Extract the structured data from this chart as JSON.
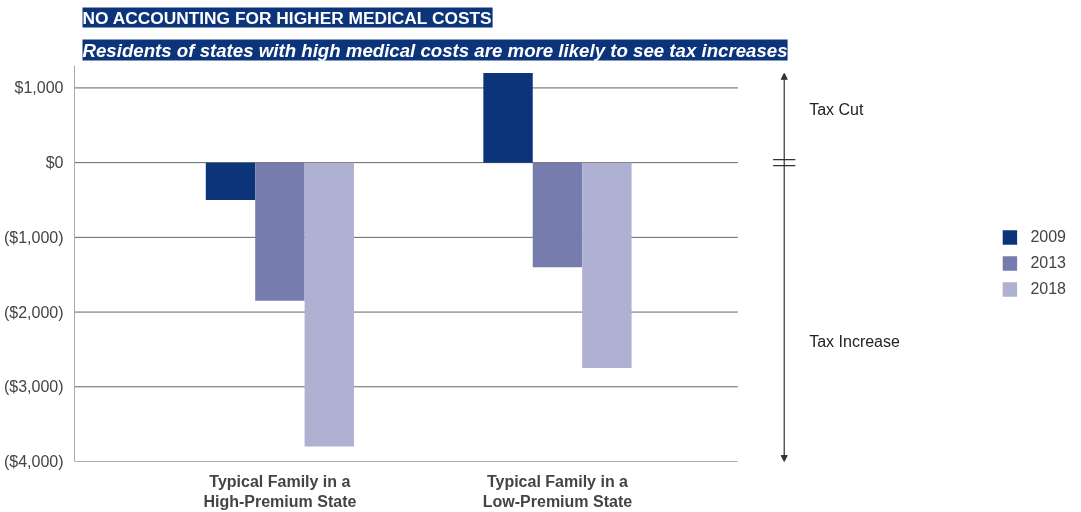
{
  "chart_data": {
    "type": "bar",
    "title": "NO ACCOUNTING FOR HIGHER MEDICAL COSTS",
    "subtitle": "Residents of states with high medical costs are more likely to see tax increases",
    "categories": [
      "Typical Family in a\nHigh-Premium State",
      "Typical Family in a\nLow-Premium State"
    ],
    "series": [
      {
        "name": "2009",
        "color": "#0b347b",
        "values": [
          -500,
          1200
        ]
      },
      {
        "name": "2013",
        "color": "#767cae",
        "values": [
          -1850,
          -1400
        ]
      },
      {
        "name": "2018",
        "color": "#aeb1d2",
        "values": [
          -3800,
          -2750
        ]
      }
    ],
    "ylim": [
      -4000,
      1300
    ],
    "yticks": [
      {
        "value": 1000,
        "label": "$1,000"
      },
      {
        "value": 0,
        "label": "$0"
      },
      {
        "value": -1000,
        "label": "($1,000)"
      },
      {
        "value": -2000,
        "label": "($2,000)"
      },
      {
        "value": -3000,
        "label": "($3,000)"
      },
      {
        "value": -4000,
        "label": "($4,000)"
      }
    ],
    "annotations": [
      "Tax Cut",
      "Tax Increase"
    ],
    "grid": "y",
    "legend": "right"
  }
}
